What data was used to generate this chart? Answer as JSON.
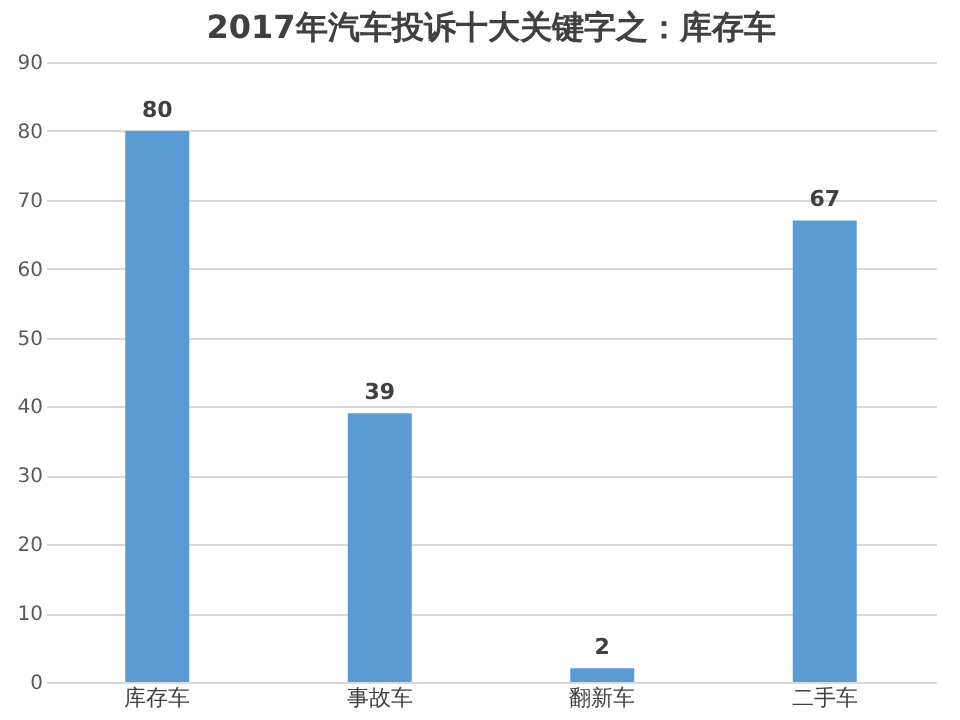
{
  "chart_data": {
    "type": "bar",
    "title": "2017年汽车投诉十大关键字之：库存车",
    "categories": [
      "库存车",
      "事故车",
      "翻新车",
      "二手车"
    ],
    "values": [
      80,
      39,
      2,
      67
    ],
    "color": "#5b9bd5",
    "ylim": [
      0,
      90
    ],
    "yticks": [
      0,
      10,
      20,
      30,
      40,
      50,
      60,
      70,
      80,
      90
    ],
    "grid": "y",
    "data_labels": true
  }
}
